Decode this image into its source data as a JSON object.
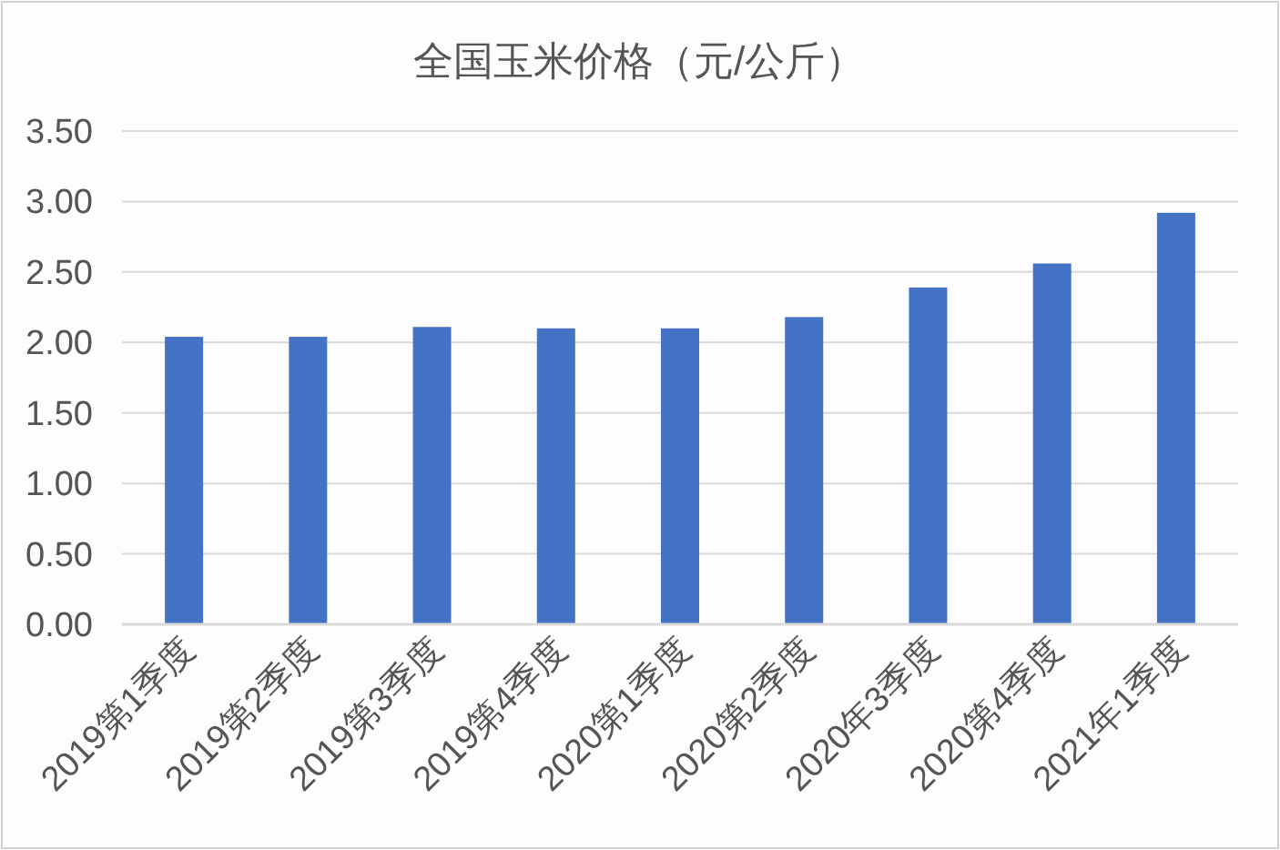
{
  "chart_data": {
    "type": "bar",
    "title": "全国玉米价格（元/公斤）",
    "categories": [
      "2019第1季度",
      "2019第2季度",
      "2019第3季度",
      "2019第4季度",
      "2020第1季度",
      "2020第2季度",
      "2020年3季度",
      "2020第4季度",
      "2021年1季度"
    ],
    "values": [
      2.04,
      2.04,
      2.11,
      2.1,
      2.1,
      2.18,
      2.39,
      2.56,
      2.92
    ],
    "color": "#4472c4",
    "ylim": [
      0,
      3.5
    ],
    "yticks": [
      {
        "value": 0,
        "label": "0.00"
      },
      {
        "value": 0.5,
        "label": "0.50"
      },
      {
        "value": 1,
        "label": "1.00"
      },
      {
        "value": 1.5,
        "label": "1.50"
      },
      {
        "value": 2,
        "label": "2.00"
      },
      {
        "value": 2.5,
        "label": "2.50"
      },
      {
        "value": 3,
        "label": "3.00"
      },
      {
        "value": 3.5,
        "label": "3.50"
      }
    ],
    "grid": "y"
  }
}
